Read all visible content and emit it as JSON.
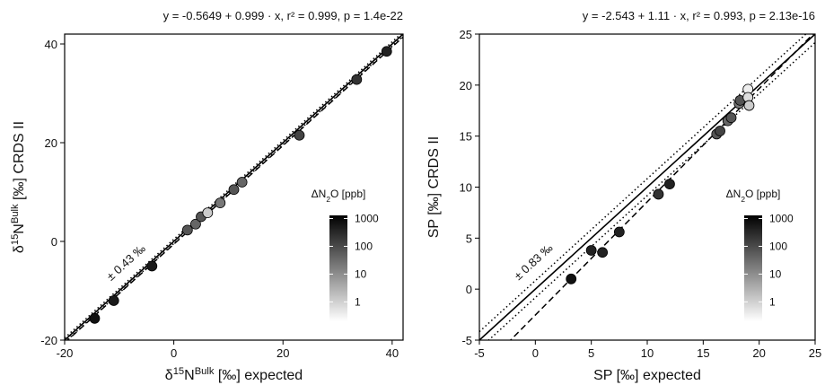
{
  "chart_data": [
    {
      "type": "scatter",
      "title": "y = -0.5649 + 0.999 · x,  r² = 0.999,  p = 1.4e-22",
      "xlabel_parts": [
        "δ",
        "15",
        "N",
        "Bulk",
        " [‰] expected"
      ],
      "ylabel_parts": [
        "δ",
        "15",
        "N",
        "Bulk",
        " [‰] CRDS II"
      ],
      "xlim": [
        -20,
        42
      ],
      "ylim": [
        -20,
        42
      ],
      "xticks": [
        -20,
        0,
        20,
        40
      ],
      "yticks": [
        -20,
        0,
        20,
        40
      ],
      "x": [
        -14.5,
        -11,
        -4,
        2.5,
        4,
        5,
        6.2,
        8.5,
        11,
        12.5,
        23,
        33.5,
        39
      ],
      "values": [
        -15.6,
        -12,
        -5,
        2.3,
        3.5,
        5,
        5.8,
        7.8,
        10.5,
        12,
        21.5,
        32.8,
        38.5
      ],
      "point_colors": [
        "#111111",
        "#1a1a1a",
        "#1a1a1a",
        "#555555",
        "#666666",
        "#555555",
        "#cccccc",
        "#777777",
        "#555555",
        "#666666",
        "#444444",
        "#333333",
        "#222222"
      ],
      "fit": {
        "intercept": -0.5649,
        "slope": 0.999
      },
      "band": 0.43,
      "band_label": "± 0.43 ‰",
      "colorbar": {
        "label_parts": [
          "ΔN",
          "2",
          "O [ppb]"
        ],
        "ticks": [
          1000,
          100,
          10,
          1
        ],
        "lim": [
          0.2,
          1300
        ],
        "log": true
      }
    },
    {
      "type": "scatter",
      "title": "y = -2.543 + 1.11 · x,  r² = 0.993,  p = 2.13e-16",
      "xlabel_parts": [
        "SP [‰] expected"
      ],
      "ylabel_parts": [
        "SP [‰] CRDS II"
      ],
      "xlim": [
        -5,
        25
      ],
      "ylim": [
        -5,
        25
      ],
      "xticks": [
        -5,
        0,
        5,
        10,
        15,
        20,
        25
      ],
      "yticks": [
        -5,
        0,
        5,
        10,
        15,
        20,
        25
      ],
      "x": [
        3.2,
        5,
        6,
        7.5,
        11,
        12,
        16.2,
        16.5,
        17.2,
        17.5,
        18.2,
        18.3,
        19,
        19,
        19.1
      ],
      "values": [
        1.0,
        3.8,
        3.6,
        5.6,
        9.3,
        10.3,
        15.2,
        15.5,
        16.5,
        16.8,
        18.2,
        18.5,
        19.6,
        18.8,
        18
      ],
      "point_colors": [
        "#111111",
        "#222222",
        "#222222",
        "#222222",
        "#333333",
        "#222222",
        "#555555",
        "#444444",
        "#666666",
        "#555555",
        "#777777",
        "#555555",
        "#eeeeee",
        "#dddddd",
        "#cccccc"
      ],
      "fit": {
        "intercept": -2.543,
        "slope": 1.11
      },
      "band": 0.83,
      "band_label": "± 0.83 ‰",
      "colorbar": {
        "label_parts": [
          "ΔN",
          "2",
          "O [ppb]"
        ],
        "ticks": [
          1000,
          100,
          10,
          1
        ],
        "lim": [
          0.2,
          1300
        ],
        "log": true
      }
    }
  ]
}
